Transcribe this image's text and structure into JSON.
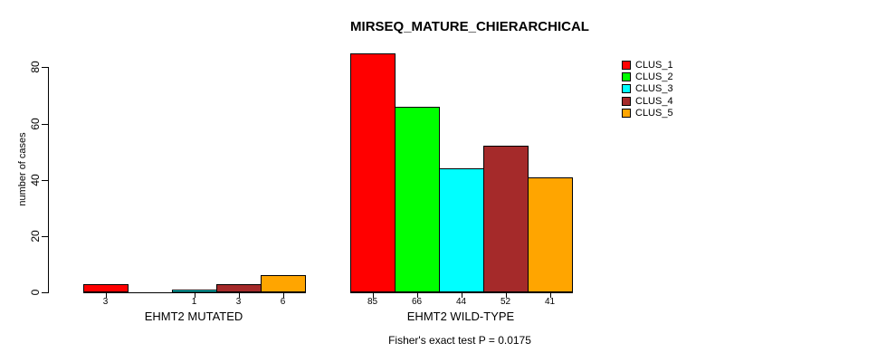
{
  "chart_data": {
    "type": "bar",
    "title": "MIRSEQ_MATURE_CHIERARCHICAL",
    "ylabel": "number of cases",
    "xlabel": "",
    "ylim": [
      0,
      80
    ],
    "yticks": [
      0,
      20,
      40,
      60,
      80
    ],
    "grid": false,
    "legend_position": "top-right",
    "clusters": [
      {
        "name": "CLUS_1",
        "color": "#FF0000"
      },
      {
        "name": "CLUS_2",
        "color": "#00FF00"
      },
      {
        "name": "CLUS_3",
        "color": "#00FFFF"
      },
      {
        "name": "CLUS_4",
        "color": "#A52A2A"
      },
      {
        "name": "CLUS_5",
        "color": "#FFA500"
      }
    ],
    "groups": [
      {
        "label": "EHMT2 MUTATED",
        "values": [
          3,
          0,
          1,
          3,
          6
        ]
      },
      {
        "label": "EHMT2 WILD-TYPE",
        "values": [
          85,
          66,
          44,
          52,
          41
        ]
      }
    ],
    "bar_value_labels_hidden_when_zero": true,
    "annotation": "Fisher's exact test P = 0.0175",
    "colors": {
      "background": "#FFFFFF",
      "axis": "#000000",
      "text": "#000000"
    }
  }
}
